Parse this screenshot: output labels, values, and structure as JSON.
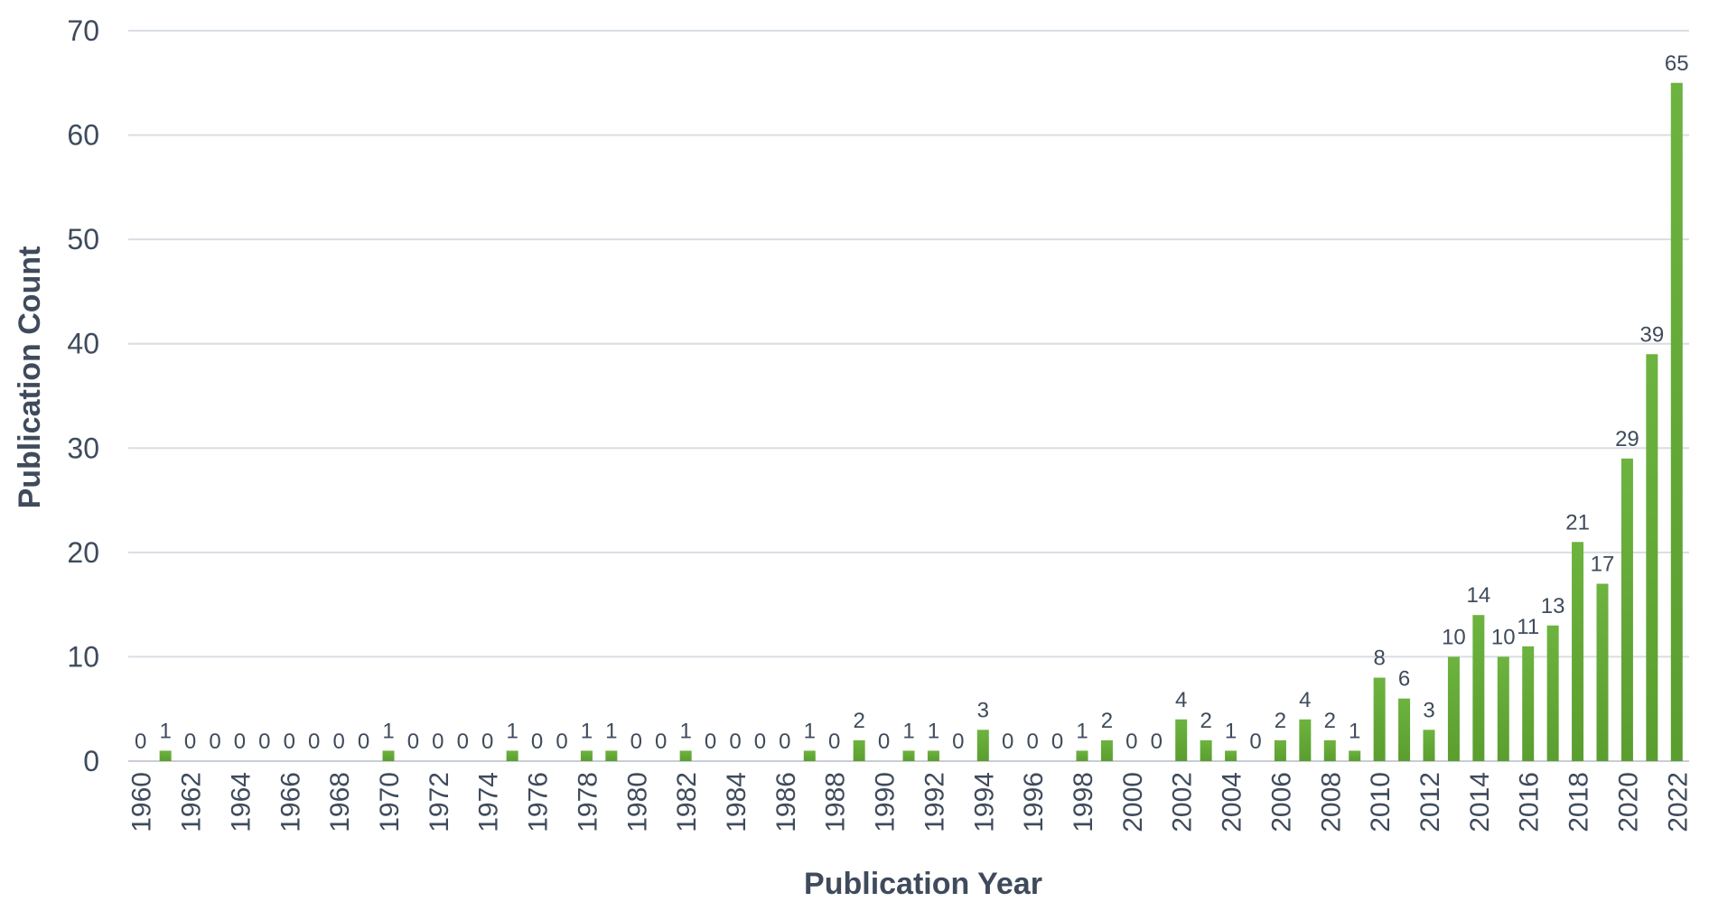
{
  "chart_data": {
    "type": "bar",
    "title": "",
    "xlabel": "Publication Year",
    "ylabel": "Publication Count",
    "ylim": [
      0,
      70
    ],
    "y_ticks": [
      0,
      10,
      20,
      30,
      40,
      50,
      60,
      70
    ],
    "grid": true,
    "legend": "none",
    "bar_color": "#6db33f",
    "bar_color_dark": "#5a9e2f",
    "categories": [
      "1960",
      "1961",
      "1962",
      "1963",
      "1964",
      "1965",
      "1966",
      "1967",
      "1968",
      "1969",
      "1970",
      "1971",
      "1972",
      "1973",
      "1974",
      "1975",
      "1976",
      "1977",
      "1978",
      "1979",
      "1980",
      "1981",
      "1982",
      "1983",
      "1984",
      "1985",
      "1986",
      "1987",
      "1988",
      "1989",
      "1990",
      "1991",
      "1992",
      "1993",
      "1994",
      "1995",
      "1996",
      "1997",
      "1998",
      "1999",
      "2000",
      "2001",
      "2002",
      "2003",
      "2004",
      "2005",
      "2006",
      "2007",
      "2008",
      "2009",
      "2010",
      "2011",
      "2012",
      "2013",
      "2014",
      "2015",
      "2016",
      "2017",
      "2018",
      "2019",
      "2020",
      "2021",
      "2022"
    ],
    "x_tick_labels": [
      "1960",
      "",
      "1962",
      "",
      "1964",
      "",
      "1966",
      "",
      "1968",
      "",
      "1970",
      "",
      "1972",
      "",
      "1974",
      "",
      "1976",
      "",
      "1978",
      "",
      "1980",
      "",
      "1982",
      "",
      "1984",
      "",
      "1986",
      "",
      "1988",
      "",
      "1990",
      "",
      "1992",
      "",
      "1994",
      "",
      "1996",
      "",
      "1998",
      "",
      "2000",
      "",
      "2002",
      "",
      "2004",
      "",
      "2006",
      "",
      "2008",
      "",
      "2010",
      "",
      "2012",
      "",
      "2014",
      "",
      "2016",
      "",
      "2018",
      "",
      "2020",
      "",
      "2022"
    ],
    "values": [
      0,
      1,
      0,
      0,
      0,
      0,
      0,
      0,
      0,
      0,
      1,
      0,
      0,
      0,
      0,
      1,
      0,
      0,
      1,
      1,
      0,
      0,
      1,
      0,
      0,
      0,
      0,
      1,
      0,
      2,
      0,
      1,
      1,
      0,
      3,
      0,
      0,
      0,
      1,
      2,
      0,
      0,
      4,
      2,
      1,
      0,
      2,
      4,
      2,
      1,
      8,
      6,
      3,
      10,
      14,
      10,
      11,
      13,
      21,
      17,
      29,
      39,
      65
    ]
  }
}
